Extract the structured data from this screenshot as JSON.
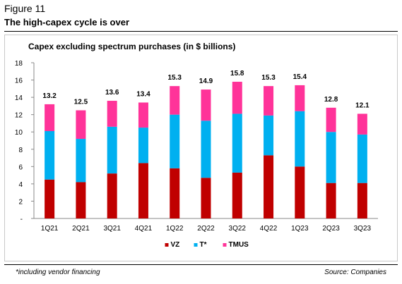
{
  "figure": {
    "label": "Figure 11",
    "title": "The high-capex cycle is over",
    "footnote": "*including vendor financing",
    "source": "Source: Companies"
  },
  "chart_data": {
    "type": "bar",
    "stacked": true,
    "title": "Capex excluding spectrum purchases (in $ billions)",
    "xlabel": "",
    "ylabel": "",
    "categories": [
      "1Q21",
      "2Q21",
      "3Q21",
      "4Q21",
      "1Q22",
      "2Q22",
      "3Q22",
      "4Q22",
      "1Q23",
      "2Q23",
      "3Q23"
    ],
    "series": [
      {
        "name": "VZ",
        "color": "#c00000",
        "values": [
          4.5,
          4.2,
          5.2,
          6.4,
          5.8,
          4.7,
          5.3,
          7.3,
          6.0,
          4.1,
          4.1
        ]
      },
      {
        "name": "T*",
        "color": "#00b0f0",
        "values": [
          5.6,
          5.0,
          5.4,
          4.1,
          6.2,
          6.6,
          6.8,
          4.6,
          6.4,
          5.9,
          5.6
        ]
      },
      {
        "name": "TMUS",
        "color": "#ff3399",
        "values": [
          3.1,
          3.3,
          3.0,
          2.9,
          3.3,
          3.6,
          3.7,
          3.4,
          3.0,
          2.8,
          2.4
        ]
      }
    ],
    "totals": [
      "13.2",
      "12.5",
      "13.6",
      "13.4",
      "15.3",
      "14.9",
      "15.8",
      "15.3",
      "15.4",
      "12.8",
      "12.1"
    ],
    "ylim": [
      0,
      18
    ],
    "yticks": [
      "-",
      "2",
      "4",
      "6",
      "8",
      "10",
      "12",
      "14",
      "16",
      "18"
    ],
    "grid": false,
    "legend_position": "bottom-center"
  }
}
